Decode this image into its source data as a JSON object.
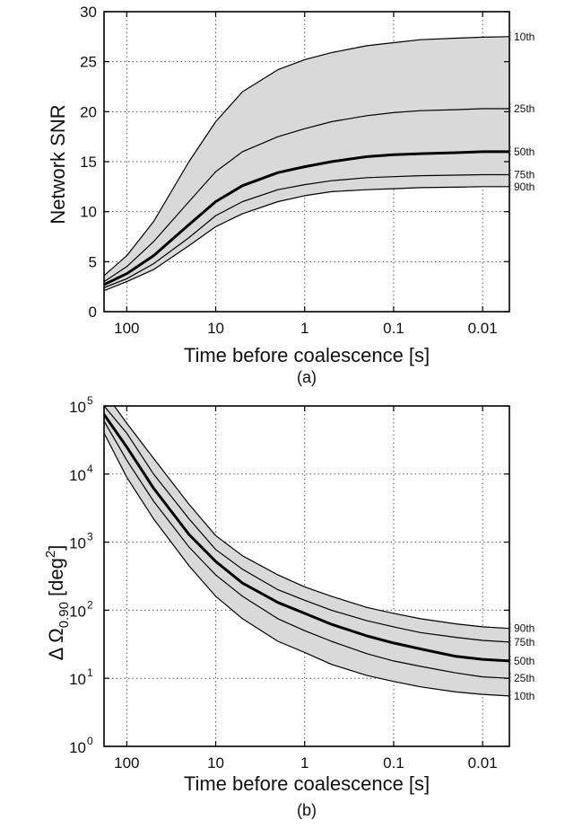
{
  "chart_data": [
    {
      "type": "area",
      "panel": "(a)",
      "caption": "(a)",
      "xlabel": "Time before coalescence [s]",
      "ylabel": "Network SNR",
      "x_scale": "log",
      "x_reversed": true,
      "xlim": [
        180,
        0.005
      ],
      "ylim": [
        0,
        30
      ],
      "x_ticks": [
        {
          "value": 100,
          "label": "100"
        },
        {
          "value": 10,
          "label": "10"
        },
        {
          "value": 1,
          "label": "1"
        },
        {
          "value": 0.1,
          "label": "0.1"
        },
        {
          "value": 0.01,
          "label": "0.01"
        }
      ],
      "y_ticks": [
        {
          "value": 0,
          "label": "0"
        },
        {
          "value": 5,
          "label": "5"
        },
        {
          "value": 10,
          "label": "10"
        },
        {
          "value": 15,
          "label": "15"
        },
        {
          "value": 20,
          "label": "20"
        },
        {
          "value": 25,
          "label": "25"
        },
        {
          "value": 30,
          "label": "30"
        }
      ],
      "grid": true,
      "shaded_band": [
        "10th",
        "90th"
      ],
      "series": [
        {
          "name": "10th",
          "bold": false,
          "x": [
            180,
            100,
            50,
            20,
            10,
            5,
            2,
            1,
            0.5,
            0.2,
            0.1,
            0.05,
            0.02,
            0.01,
            0.005
          ],
          "values": [
            3.6,
            5.6,
            9.0,
            15.0,
            19.0,
            22.0,
            24.2,
            25.2,
            25.9,
            26.6,
            26.9,
            27.2,
            27.35,
            27.45,
            27.5
          ]
        },
        {
          "name": "25th",
          "bold": false,
          "x": [
            180,
            100,
            50,
            20,
            10,
            5,
            2,
            1,
            0.5,
            0.2,
            0.1,
            0.05,
            0.02,
            0.01,
            0.005
          ],
          "values": [
            3.0,
            4.5,
            7.0,
            11.0,
            14.0,
            16.0,
            17.5,
            18.3,
            19.0,
            19.6,
            19.9,
            20.1,
            20.2,
            20.3,
            20.3
          ]
        },
        {
          "name": "50th",
          "bold": true,
          "x": [
            180,
            100,
            50,
            20,
            10,
            5,
            2,
            1,
            0.5,
            0.2,
            0.1,
            0.05,
            0.02,
            0.01,
            0.005
          ],
          "values": [
            2.7,
            3.8,
            5.6,
            8.7,
            11.0,
            12.6,
            13.9,
            14.5,
            15.0,
            15.5,
            15.7,
            15.8,
            15.9,
            16.0,
            16.0
          ]
        },
        {
          "name": "75th",
          "bold": false,
          "x": [
            180,
            100,
            50,
            20,
            10,
            5,
            2,
            1,
            0.5,
            0.2,
            0.1,
            0.05,
            0.02,
            0.01,
            0.005
          ],
          "values": [
            2.4,
            3.3,
            4.8,
            7.4,
            9.6,
            11.0,
            12.2,
            12.7,
            13.1,
            13.4,
            13.5,
            13.6,
            13.65,
            13.7,
            13.7
          ]
        },
        {
          "name": "90th",
          "bold": false,
          "x": [
            180,
            100,
            50,
            20,
            10,
            5,
            2,
            1,
            0.5,
            0.2,
            0.1,
            0.05,
            0.02,
            0.01,
            0.005
          ],
          "values": [
            2.1,
            3.0,
            4.2,
            6.6,
            8.5,
            9.8,
            11.0,
            11.6,
            12.0,
            12.2,
            12.3,
            12.4,
            12.45,
            12.5,
            12.5
          ]
        }
      ]
    },
    {
      "type": "area",
      "panel": "(b)",
      "caption": "(b)",
      "xlabel": "Time before coalescence [s]",
      "ylabel": "Δ Ω 0.90 [deg 2]",
      "ylabel_parts": {
        "prefix": "Δ Ω",
        "subscript": "0.90",
        "unit_open": " [deg",
        "superscript": "2",
        "unit_close": "]"
      },
      "x_scale": "log",
      "y_scale": "log",
      "x_reversed": true,
      "xlim": [
        180,
        0.005
      ],
      "ylim": [
        1,
        100000
      ],
      "x_ticks": [
        {
          "value": 100,
          "label": "100"
        },
        {
          "value": 10,
          "label": "10"
        },
        {
          "value": 1,
          "label": "1"
        },
        {
          "value": 0.1,
          "label": "0.1"
        },
        {
          "value": 0.01,
          "label": "0.01"
        }
      ],
      "y_ticks": [
        {
          "value": 1,
          "base": "10",
          "exp": "0"
        },
        {
          "value": 10,
          "base": "10",
          "exp": "1"
        },
        {
          "value": 100,
          "base": "10",
          "exp": "2"
        },
        {
          "value": 1000,
          "base": "10",
          "exp": "3"
        },
        {
          "value": 10000,
          "base": "10",
          "exp": "4"
        },
        {
          "value": 100000,
          "base": "10",
          "exp": "5"
        }
      ],
      "grid": true,
      "shaded_band": [
        "90th",
        "10th"
      ],
      "series": [
        {
          "name": "90th",
          "bold": false,
          "x": [
            138,
            100,
            50,
            20,
            10,
            5,
            2,
            1,
            0.5,
            0.2,
            0.1,
            0.05,
            0.02,
            0.01,
            0.005
          ],
          "values": [
            100000,
            56000,
            17000,
            3600,
            1250,
            630,
            330,
            220,
            160,
            110,
            90,
            75,
            63,
            57,
            54
          ]
        },
        {
          "name": "75th",
          "bold": false,
          "x": [
            180,
            100,
            50,
            20,
            10,
            5,
            2,
            1,
            0.5,
            0.2,
            0.1,
            0.05,
            0.02,
            0.01,
            0.005
          ],
          "values": [
            100000,
            40000,
            10000,
            2200,
            780,
            400,
            200,
            140,
            100,
            70,
            57,
            47,
            40,
            36,
            34
          ]
        },
        {
          "name": "50th",
          "bold": true,
          "x": [
            180,
            100,
            50,
            20,
            10,
            5,
            2,
            1,
            0.5,
            0.2,
            0.1,
            0.05,
            0.02,
            0.01,
            0.005
          ],
          "values": [
            75000,
            25000,
            6200,
            1300,
            520,
            250,
            130,
            90,
            62,
            42,
            33,
            27,
            21,
            19,
            18
          ]
        },
        {
          "name": "25th",
          "bold": false,
          "x": [
            180,
            100,
            50,
            20,
            10,
            5,
            2,
            1,
            0.5,
            0.2,
            0.1,
            0.05,
            0.02,
            0.01,
            0.005
          ],
          "values": [
            60000,
            16000,
            4000,
            850,
            330,
            160,
            75,
            50,
            35,
            23,
            18,
            15,
            12,
            10.5,
            10
          ]
        },
        {
          "name": "10th",
          "bold": false,
          "x": [
            180,
            100,
            50,
            20,
            10,
            5,
            2,
            1,
            0.5,
            0.2,
            0.1,
            0.05,
            0.02,
            0.01,
            0.005
          ],
          "values": [
            40000,
            9000,
            2200,
            450,
            160,
            75,
            35,
            24,
            16,
            11,
            9,
            7.5,
            6.3,
            5.8,
            5.5
          ]
        }
      ]
    }
  ]
}
